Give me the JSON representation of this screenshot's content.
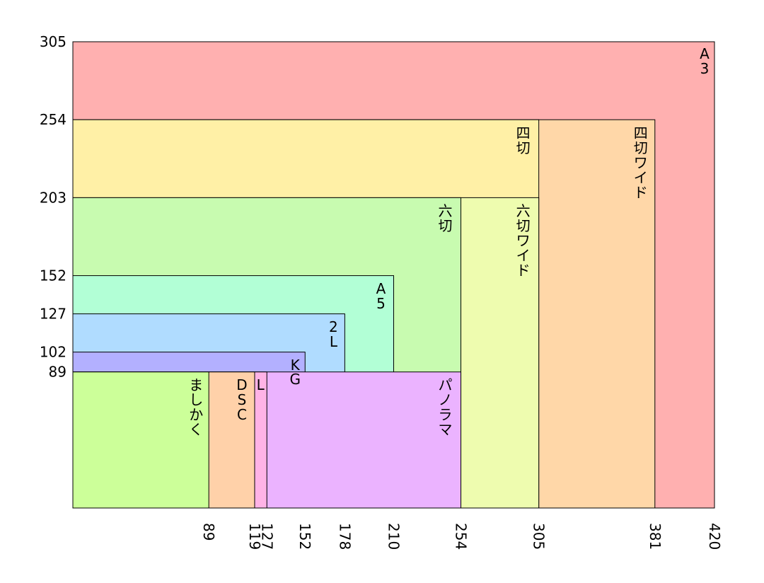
{
  "diagram": {
    "units_note": "",
    "x_ticks": [
      "89",
      "119",
      "127",
      "152",
      "178",
      "210",
      "254",
      "305",
      "381",
      "420"
    ],
    "y_ticks": [
      "305",
      "254",
      "203",
      "152",
      "127",
      "102",
      "89"
    ],
    "sizes": [
      {
        "id": "a3",
        "label": "A3",
        "w": 420,
        "h": 305,
        "color": "#ffb0b0"
      },
      {
        "id": "yotsugiri-wide",
        "label": "四切ワイド",
        "w": 381,
        "h": 254,
        "color": "#ffd7a8"
      },
      {
        "id": "yotsugiri",
        "label": "四切",
        "w": 305,
        "h": 254,
        "color": "#fff0a6"
      },
      {
        "id": "mutsugiri-wide",
        "label": "六切ワイド",
        "w": 305,
        "h": 203,
        "color": "#eefcaf"
      },
      {
        "id": "mutsugiri",
        "label": "六切",
        "w": 254,
        "h": 203,
        "color": "#c8fbb0"
      },
      {
        "id": "a5",
        "label": "A5",
        "w": 210,
        "h": 152,
        "color": "#b2ffd6"
      },
      {
        "id": "2l",
        "label": "2L",
        "w": 178,
        "h": 127,
        "color": "#b0dcff"
      },
      {
        "id": "kg",
        "label": "KG",
        "w": 152,
        "h": 102,
        "color": "#b3b0ff"
      },
      {
        "id": "panorama",
        "label": "パノラマ",
        "w": 254,
        "h": 89,
        "color": "#ebb3ff"
      },
      {
        "id": "l",
        "label": "L",
        "w": 127,
        "h": 89,
        "color": "#ffb3e6"
      },
      {
        "id": "dsc",
        "label": "DSC",
        "w": 119,
        "h": 89,
        "color": "#ffd1a9"
      },
      {
        "id": "mashikaku",
        "label": "ましかく",
        "w": 89,
        "h": 89,
        "color": "#ccff99"
      }
    ]
  }
}
